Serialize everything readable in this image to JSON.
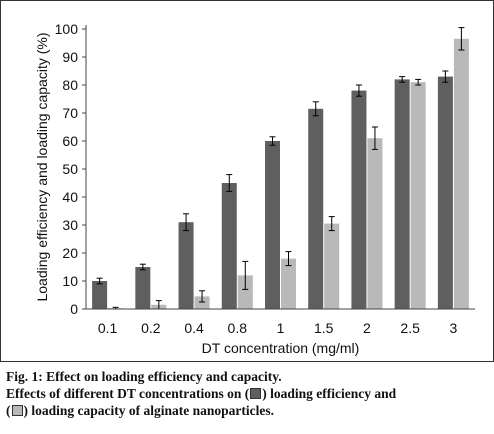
{
  "colors": {
    "series1": "#5f5f5f",
    "series2": "#b9b9b9",
    "axis": "#444444",
    "errorbar": "#000000"
  },
  "chart_data": {
    "type": "bar",
    "categories": [
      "0.1",
      "0.2",
      "0.4",
      "0.8",
      "1",
      "1.5",
      "2",
      "2.5",
      "3"
    ],
    "series": [
      {
        "values": [
          10,
          15,
          31,
          45,
          60,
          71.5,
          78,
          82,
          83
        ],
        "errors": [
          1,
          1,
          3,
          3,
          1.5,
          2.5,
          2,
          1,
          2
        ]
      },
      {
        "values": [
          0.3,
          1.5,
          4.5,
          12,
          18,
          30.5,
          61,
          81,
          96.5
        ],
        "errors": [
          0.3,
          1.5,
          2,
          5,
          2.5,
          2.5,
          4,
          1,
          4
        ]
      }
    ],
    "xlabel": "DT concentration (mg/ml)",
    "ylabel": "Loading efficiency and loading capacity (%)",
    "ylim": [
      0,
      100
    ],
    "yticks": [
      "0",
      "10",
      "20",
      "30",
      "40",
      "50",
      "60",
      "70",
      "80",
      "90",
      "100"
    ],
    "grid": false,
    "legend": "none"
  },
  "caption": {
    "title": "Fig. 1: Effect on loading efficiency and capacity.",
    "line2_prefix": "Effects of different DT concentrations on (",
    "line2_mid": ") loading efficiency and",
    "line3_prefix": "(",
    "line3_suffix": ") loading capacity of alginate nanoparticles."
  }
}
